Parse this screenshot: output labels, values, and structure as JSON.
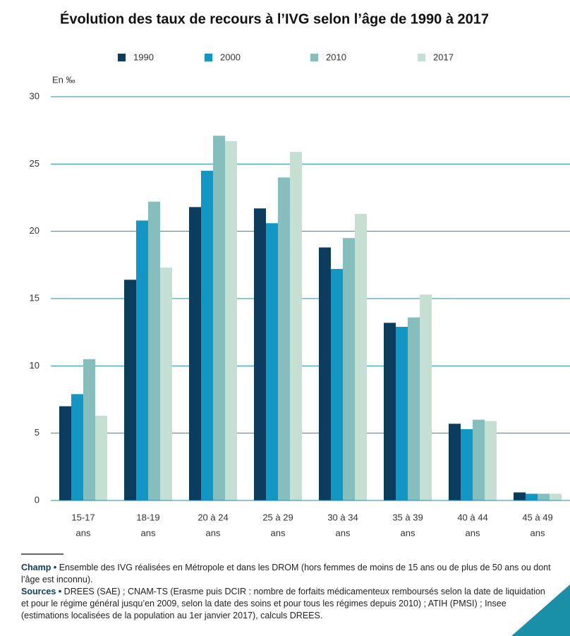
{
  "chart_data": {
    "type": "bar",
    "title": "Évolution des taux de recours à l’IVG selon l’âge de 1990 à 2017",
    "y_label": "En ‰",
    "categories": [
      [
        "15-17",
        "ans"
      ],
      [
        "18-19",
        "ans"
      ],
      [
        "20 à 24",
        "ans"
      ],
      [
        "25 à 29",
        "ans"
      ],
      [
        "30 à 34",
        "ans"
      ],
      [
        "35 à 39",
        "ans"
      ],
      [
        "40 à 44",
        "ans"
      ],
      [
        "45 à 49",
        "ans"
      ]
    ],
    "series": [
      {
        "name": "1990",
        "color": "#0d3d5e",
        "values": [
          7.0,
          16.4,
          21.8,
          21.7,
          18.8,
          13.2,
          5.7,
          0.6
        ]
      },
      {
        "name": "2000",
        "color": "#1296c4",
        "values": [
          7.9,
          20.8,
          24.5,
          20.6,
          17.2,
          12.9,
          5.3,
          0.5
        ]
      },
      {
        "name": "2010",
        "color": "#86bdbd",
        "values": [
          10.5,
          22.2,
          27.1,
          24.0,
          19.5,
          13.6,
          6.0,
          0.5
        ]
      },
      {
        "name": "2017",
        "color": "#c5e0d3",
        "values": [
          6.3,
          17.3,
          26.7,
          25.9,
          21.3,
          15.3,
          5.9,
          0.5
        ]
      }
    ],
    "ylim": [
      0,
      30
    ],
    "yticks": [
      0,
      5,
      10,
      15,
      20,
      25,
      30
    ],
    "grid": true,
    "legend": "top",
    "notes": [
      {
        "label": "Champ •",
        "text": "Ensemble des IVG réalisées en Métropole et dans les DROM (hors femmes de moins de 15 ans ou de plus de 50 ans ou dont l’âge est inconnu)."
      },
      {
        "label": "Sources •",
        "text": "DREES (SAE) ; CNAM-TS (Erasme puis DCIR : nombre de forfaits médicamenteux remboursés selon la date de liquidation et pour le régime général jusqu’en 2009, selon la date des soins et pour tous les régimes depuis 2010) ; ATIH (PMSI) ; Insee (estimations localisées de la population au 1er janvier 2017), calculs DREES."
      }
    ]
  }
}
